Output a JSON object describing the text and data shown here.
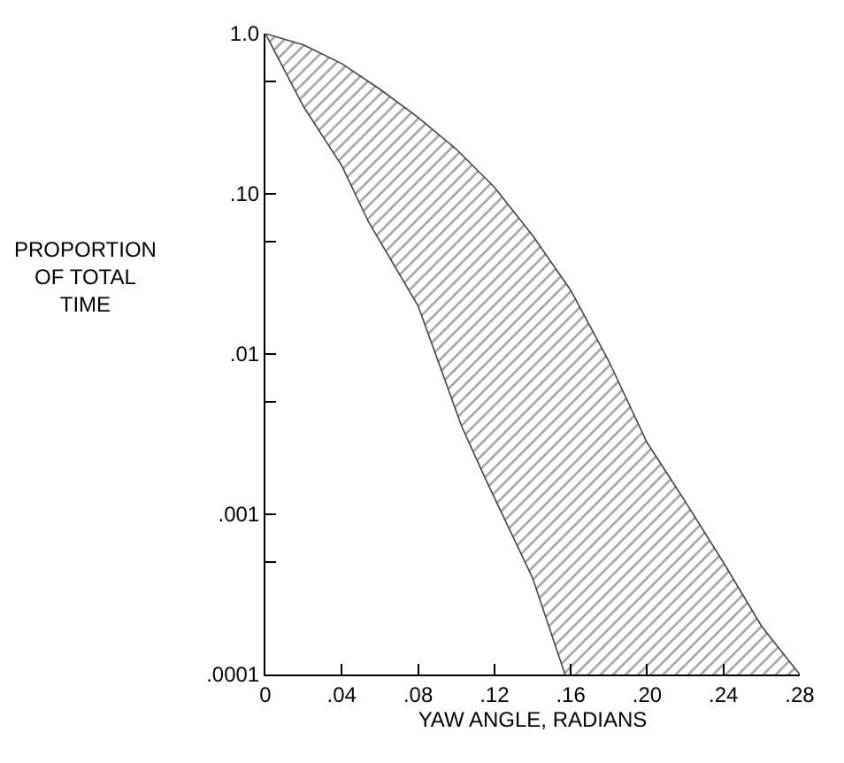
{
  "chart_data": {
    "type": "area",
    "xlabel": "YAW ANGLE, RADIANS",
    "ylabel": "PROPORTION\nOF TOTAL\nTIME",
    "log": "y",
    "xlim": [
      0,
      0.28
    ],
    "ylim": [
      0.0001,
      1.0
    ],
    "xticks": [
      {
        "value": 0,
        "label": "0"
      },
      {
        "value": 0.04,
        "label": ".04"
      },
      {
        "value": 0.08,
        "label": ".08"
      },
      {
        "value": 0.12,
        "label": ".12"
      },
      {
        "value": 0.16,
        "label": ".16"
      },
      {
        "value": 0.2,
        "label": ".20"
      },
      {
        "value": 0.24,
        "label": ".24"
      },
      {
        "value": 0.28,
        "label": ".28"
      }
    ],
    "yticks": [
      {
        "value": 1.0,
        "label": "1.0"
      },
      {
        "value": 0.5,
        "label": null
      },
      {
        "value": 0.1,
        "label": ".10"
      },
      {
        "value": 0.05,
        "label": null
      },
      {
        "value": 0.01,
        "label": ".01"
      },
      {
        "value": 0.005,
        "label": null
      },
      {
        "value": 0.001,
        "label": ".001"
      },
      {
        "value": 0.0005,
        "label": null
      },
      {
        "value": 0.0001,
        "label": ".0001"
      }
    ],
    "series": [
      {
        "color": "#444444",
        "x": [
          0,
          0.02,
          0.04,
          0.054,
          0.08,
          0.103,
          0.116,
          0.14,
          0.157
        ],
        "values": [
          1.0,
          0.35,
          0.15,
          0.067,
          0.02,
          0.0035,
          0.0016,
          0.0004,
          0.0001
        ]
      },
      {
        "color": "#444444",
        "x": [
          0,
          0.02,
          0.04,
          0.06,
          0.08,
          0.1,
          0.12,
          0.14,
          0.16,
          0.18,
          0.2,
          0.22,
          0.24,
          0.26,
          0.28
        ],
        "values": [
          1.0,
          0.85,
          0.65,
          0.45,
          0.3,
          0.19,
          0.11,
          0.055,
          0.025,
          0.009,
          0.0028,
          0.0012,
          0.0005,
          0.0002,
          0.0001
        ]
      }
    ]
  }
}
